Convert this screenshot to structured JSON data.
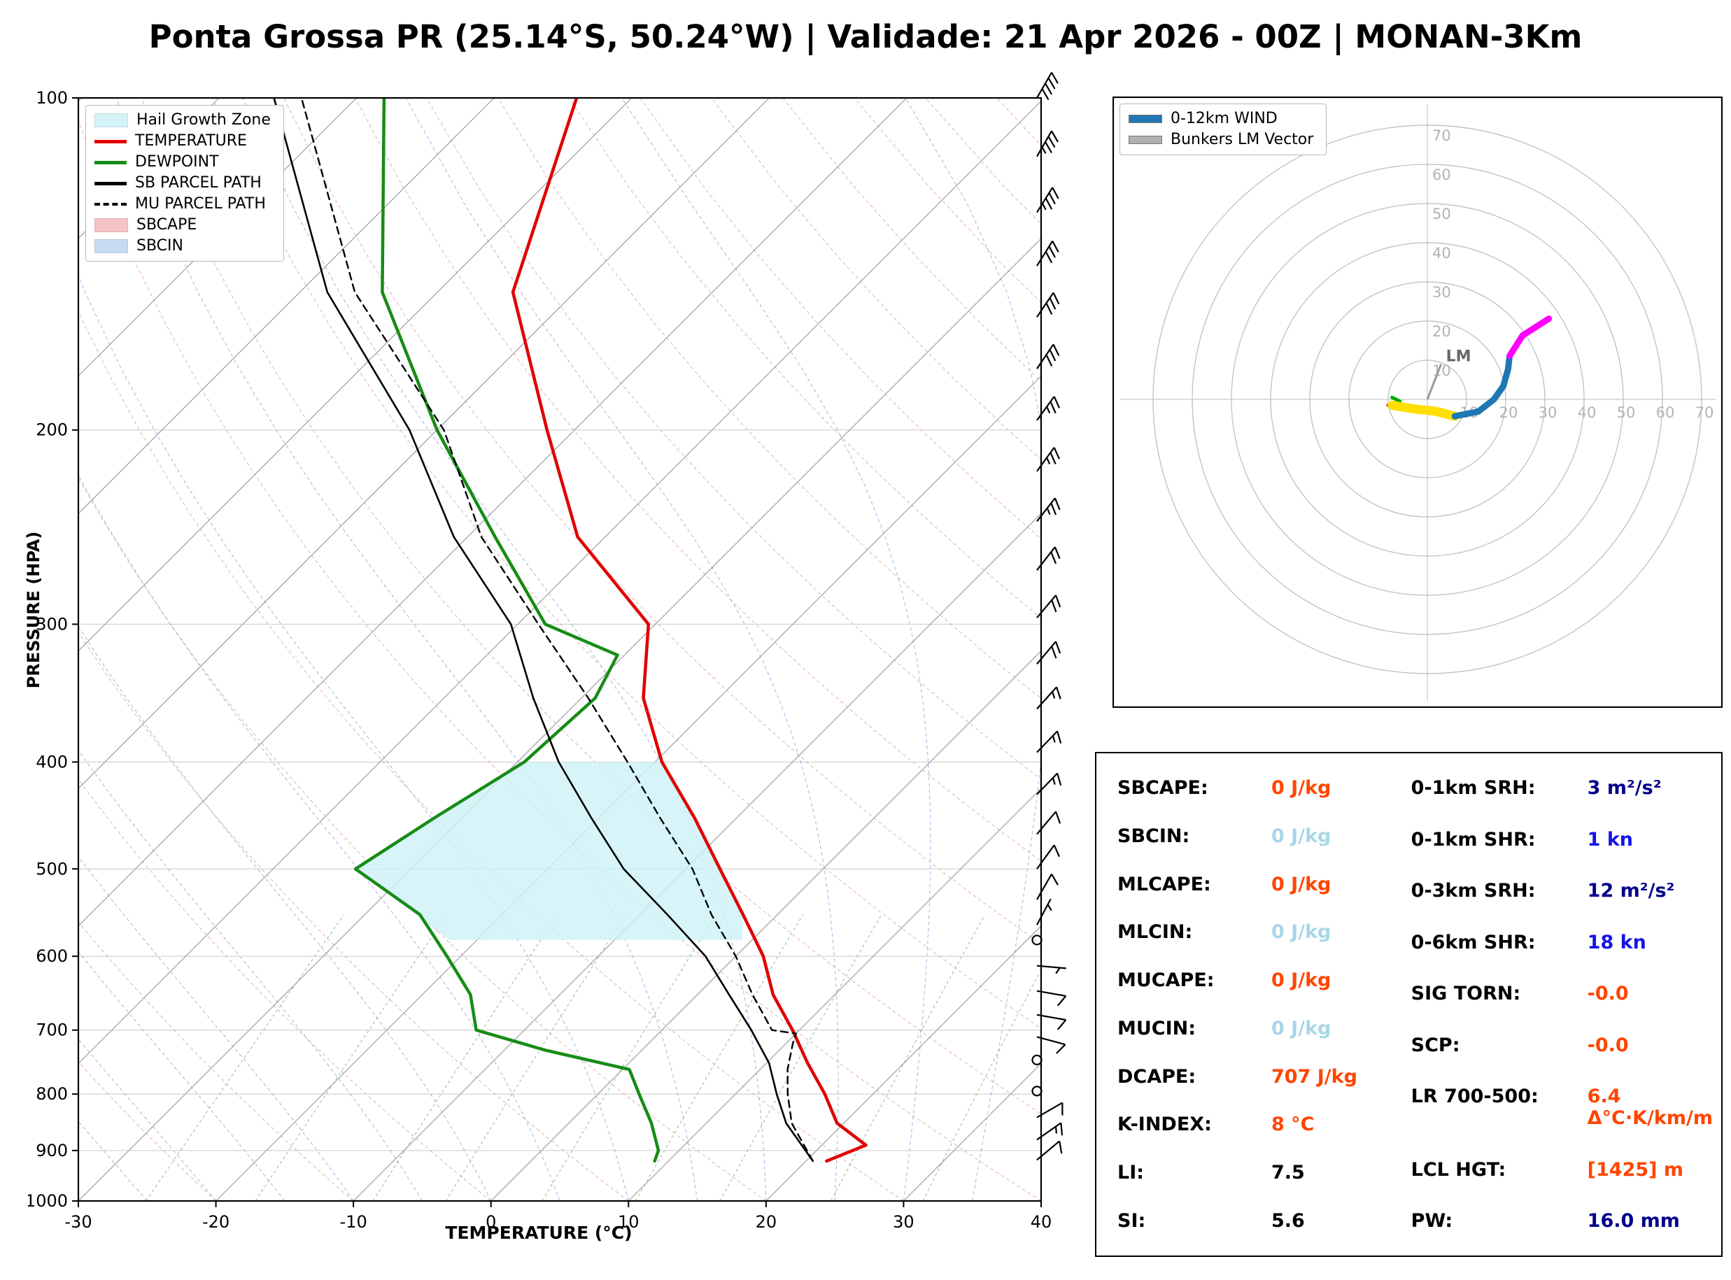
{
  "title": "Ponta Grossa PR (25.14°S, 50.24°W) | Validade: 21 Apr 2026 - 00Z | MONAN-3Km",
  "palette": {
    "orange": "#ff4500",
    "lightblue": "#a8d7e6",
    "blue": "#1414e6",
    "navy": "#00008b",
    "black": "#000000",
    "temperature": "#e00000",
    "dewpoint": "#168c16",
    "parcel": "#000000",
    "hail": "#cdf2f6",
    "sbcape_patch": "#f4b8bc",
    "sbcin_patch": "#bdd7ee",
    "wind_blue": "#1f77b4",
    "bunkers_gray": "#b0b0b0"
  },
  "skewt_legend": [
    {
      "label": "Hail Growth Zone",
      "swatch": "patch",
      "color": "#cdf2f6"
    },
    {
      "label": "TEMPERATURE",
      "swatch": "line",
      "color": "#e00000"
    },
    {
      "label": "DEWPOINT",
      "swatch": "line",
      "color": "#168c16"
    },
    {
      "label": "SB PARCEL PATH",
      "swatch": "line",
      "color": "#000000"
    },
    {
      "label": "MU PARCEL PATH",
      "swatch": "dashed",
      "color": "#000000"
    },
    {
      "label": "SBCAPE",
      "swatch": "patch",
      "color": "#f4b8bc"
    },
    {
      "label": "SBCIN",
      "swatch": "patch",
      "color": "#bdd7ee"
    }
  ],
  "hodo_legend": [
    {
      "label": "0-12km WIND",
      "swatch": "line-thick",
      "color": "#1f77b4"
    },
    {
      "label": "Bunkers LM Vector",
      "swatch": "line-thick",
      "color": "#b0b0b0"
    }
  ],
  "chart_data": [
    {
      "type": "skewt",
      "xlabel": "TEMPERATURE (°C)",
      "ylabel": "PRESSURE (HPA)",
      "xlim": [
        -30,
        40
      ],
      "plim": [
        100,
        1000
      ],
      "p_ticks": [
        100,
        200,
        300,
        400,
        500,
        600,
        700,
        800,
        900,
        1000
      ],
      "t_ticks": [
        -30,
        -20,
        -10,
        0,
        10,
        20,
        30,
        40
      ],
      "mixing_ratios": [
        0.5,
        1,
        2,
        3,
        5,
        8,
        12,
        20,
        30
      ],
      "series": [
        {
          "name": "TEMPERATURE",
          "color": "#e00000",
          "width": 4.5,
          "dash": false,
          "points": [
            [
              920,
              21.5
            ],
            [
              890,
              23.2
            ],
            [
              850,
              19.5
            ],
            [
              800,
              16.5
            ],
            [
              750,
              13.0
            ],
            [
              700,
              9.5
            ],
            [
              650,
              5.5
            ],
            [
              600,
              2.0
            ],
            [
              550,
              -2.5
            ],
            [
              500,
              -7.5
            ],
            [
              450,
              -13.0
            ],
            [
              400,
              -19.5
            ],
            [
              350,
              -25.5
            ],
            [
              300,
              -30.5
            ],
            [
              250,
              -42.0
            ],
            [
              200,
              -52.0
            ],
            [
              150,
              -64.5
            ],
            [
              100,
              -74.0
            ]
          ]
        },
        {
          "name": "DEWPOINT",
          "color": "#168c16",
          "width": 4.5,
          "dash": false,
          "points": [
            [
              920,
              9.0
            ],
            [
              900,
              8.5
            ],
            [
              850,
              6.0
            ],
            [
              800,
              3.0
            ],
            [
              760,
              0.5
            ],
            [
              730,
              -7.0
            ],
            [
              700,
              -13.5
            ],
            [
              650,
              -16.5
            ],
            [
              600,
              -21.0
            ],
            [
              550,
              -26.0
            ],
            [
              500,
              -34.0
            ],
            [
              450,
              -32.0
            ],
            [
              400,
              -29.5
            ],
            [
              350,
              -29.0
            ],
            [
              320,
              -30.5
            ],
            [
              300,
              -38.0
            ],
            [
              250,
              -48.0
            ],
            [
              200,
              -60.0
            ],
            [
              150,
              -74.0
            ],
            [
              100,
              -88.0
            ]
          ]
        },
        {
          "name": "SB PARCEL PATH",
          "color": "#000000",
          "width": 2.6,
          "dash": false,
          "points": [
            [
              920,
              20.5
            ],
            [
              850,
              15.8
            ],
            [
              800,
              13.0
            ],
            [
              750,
              10.2
            ],
            [
              700,
              6.5
            ],
            [
              650,
              2.3
            ],
            [
              600,
              -2.2
            ],
            [
              550,
              -8.0
            ],
            [
              500,
              -14.5
            ],
            [
              450,
              -20.5
            ],
            [
              400,
              -27.0
            ],
            [
              350,
              -33.5
            ],
            [
              300,
              -40.5
            ],
            [
              250,
              -51.0
            ],
            [
              200,
              -62.0
            ],
            [
              150,
              -78.0
            ],
            [
              100,
              -96.0
            ]
          ]
        },
        {
          "name": "MU PARCEL PATH",
          "color": "#000000",
          "width": 2.4,
          "dash": true,
          "points": [
            [
              920,
              20.5
            ],
            [
              850,
              16.2
            ],
            [
              800,
              13.8
            ],
            [
              760,
              12.0
            ],
            [
              720,
              10.5
            ],
            [
              705,
              10.0
            ],
            [
              700,
              8.0
            ],
            [
              650,
              4.0
            ],
            [
              600,
              0.0
            ],
            [
              550,
              -4.8
            ],
            [
              500,
              -9.5
            ],
            [
              450,
              -15.5
            ],
            [
              400,
              -22.0
            ],
            [
              350,
              -29.5
            ],
            [
              300,
              -38.5
            ],
            [
              250,
              -49.0
            ],
            [
              200,
              -59.5
            ],
            [
              150,
              -76.0
            ],
            [
              100,
              -94.0
            ]
          ]
        }
      ],
      "hail_growth_zone": [
        [
          -22,
          580
        ],
        [
          -34,
          500
        ],
        [
          -32,
          450
        ],
        [
          -29.5,
          400
        ],
        [
          -19.5,
          400
        ],
        [
          -13,
          450
        ],
        [
          -7.5,
          500
        ],
        [
          -2.5,
          550
        ],
        [
          -0.7,
          580
        ]
      ],
      "winds": [
        [
          100,
          30,
          40
        ],
        [
          113,
          30,
          35
        ],
        [
          127,
          32,
          35
        ],
        [
          142,
          32,
          30
        ],
        [
          158,
          34,
          30
        ],
        [
          176,
          34,
          30
        ],
        [
          196,
          36,
          25
        ],
        [
          218,
          36,
          25
        ],
        [
          242,
          38,
          25
        ],
        [
          268,
          38,
          20
        ],
        [
          296,
          40,
          20
        ],
        [
          326,
          40,
          20
        ],
        [
          358,
          42,
          15
        ],
        [
          392,
          44,
          15
        ],
        [
          428,
          44,
          15
        ],
        [
          465,
          40,
          10
        ],
        [
          500,
          36,
          10
        ],
        [
          533,
          30,
          10
        ],
        [
          562,
          28,
          5
        ],
        [
          580,
          0,
          0
        ],
        [
          612,
          95,
          5
        ],
        [
          645,
          100,
          10
        ],
        [
          678,
          100,
          10
        ],
        [
          710,
          105,
          10
        ],
        [
          745,
          0,
          0
        ],
        [
          795,
          0,
          0
        ],
        [
          840,
          60,
          10
        ],
        [
          880,
          55,
          15
        ],
        [
          918,
          50,
          10
        ]
      ]
    },
    {
      "type": "hodograph",
      "rings": [
        10,
        20,
        30,
        40,
        50,
        60,
        70
      ],
      "units": "kn",
      "legend_position": "upper-left",
      "segments": [
        {
          "name": "near-sfc-a",
          "color": "#dd0000",
          "width": 5,
          "points": [
            [
              -10,
              -1.5
            ],
            [
              -8,
              -2
            ]
          ]
        },
        {
          "name": "near-sfc-b",
          "color": "#00aa00",
          "width": 5,
          "points": [
            [
              -9,
              0.5
            ],
            [
              -7,
              -0.5
            ]
          ]
        },
        {
          "name": "low-level",
          "color": "#ffdf00",
          "width": 13,
          "points": [
            [
              -9,
              -1.5
            ],
            [
              -3,
              -2.5
            ],
            [
              2,
              -3
            ],
            [
              7,
              -4.3
            ]
          ]
        },
        {
          "name": "0-12km-wind",
          "color": "#1f77b4",
          "width": 9,
          "points": [
            [
              7,
              -4.3
            ],
            [
              13,
              -3.1
            ],
            [
              17,
              0
            ],
            [
              19.4,
              3.4
            ],
            [
              20.6,
              7.7
            ],
            [
              21,
              11.1
            ]
          ]
        },
        {
          "name": "upper",
          "color": "#ff00ff",
          "width": 9,
          "points": [
            [
              21,
              11.1
            ],
            [
              24.3,
              16.3
            ],
            [
              31,
              20.6
            ]
          ]
        }
      ],
      "lm_vector": {
        "u": 3.5,
        "v": 9,
        "color": "#9a9a9a",
        "label": "LM"
      }
    }
  ],
  "indices": {
    "left": [
      {
        "label": "SBCAPE:",
        "value": "0 J/kg",
        "color": "#ff4500"
      },
      {
        "label": "SBCIN:",
        "value": "0 J/kg",
        "color": "#a8d7e6"
      },
      {
        "label": "MLCAPE:",
        "value": "0 J/kg",
        "color": "#ff4500"
      },
      {
        "label": "MLCIN:",
        "value": "0 J/kg",
        "color": "#a8d7e6"
      },
      {
        "label": "MUCAPE:",
        "value": "0 J/kg",
        "color": "#ff4500"
      },
      {
        "label": "MUCIN:",
        "value": "0 J/kg",
        "color": "#a8d7e6"
      },
      {
        "label": "DCAPE:",
        "value": "707 J/kg",
        "color": "#ff4500"
      },
      {
        "label": "K-INDEX:",
        "value": "8 °C",
        "color": "#ff4500"
      },
      {
        "label": "LI:",
        "value": "7.5",
        "color": "#000000"
      },
      {
        "label": "SI:",
        "value": "5.6",
        "color": "#000000"
      }
    ],
    "right": [
      {
        "label": "0-1km SRH:",
        "value": "3 m²/s²",
        "color": "#00008b"
      },
      {
        "label": "0-1km SHR:",
        "value": "1 kn",
        "color": "#1414e6"
      },
      {
        "label": "0-3km SRH:",
        "value": "12 m²/s²",
        "color": "#00008b"
      },
      {
        "label": "0-6km SHR:",
        "value": "18 kn",
        "color": "#1414e6"
      },
      {
        "label": "SIG TORN:",
        "value": "-0.0",
        "color": "#ff4500"
      },
      {
        "label": "SCP:",
        "value": "-0.0",
        "color": "#ff4500"
      },
      {
        "label": "LR 700-500:",
        "value": "6.4 Δ°C·K/km/m",
        "color": "#ff4500"
      },
      {
        "label": "LCL HGT:",
        "value": "[1425] m",
        "color": "#ff4500"
      },
      {
        "label": "PW:",
        "value": "16.0 mm",
        "color": "#00008b"
      }
    ]
  }
}
